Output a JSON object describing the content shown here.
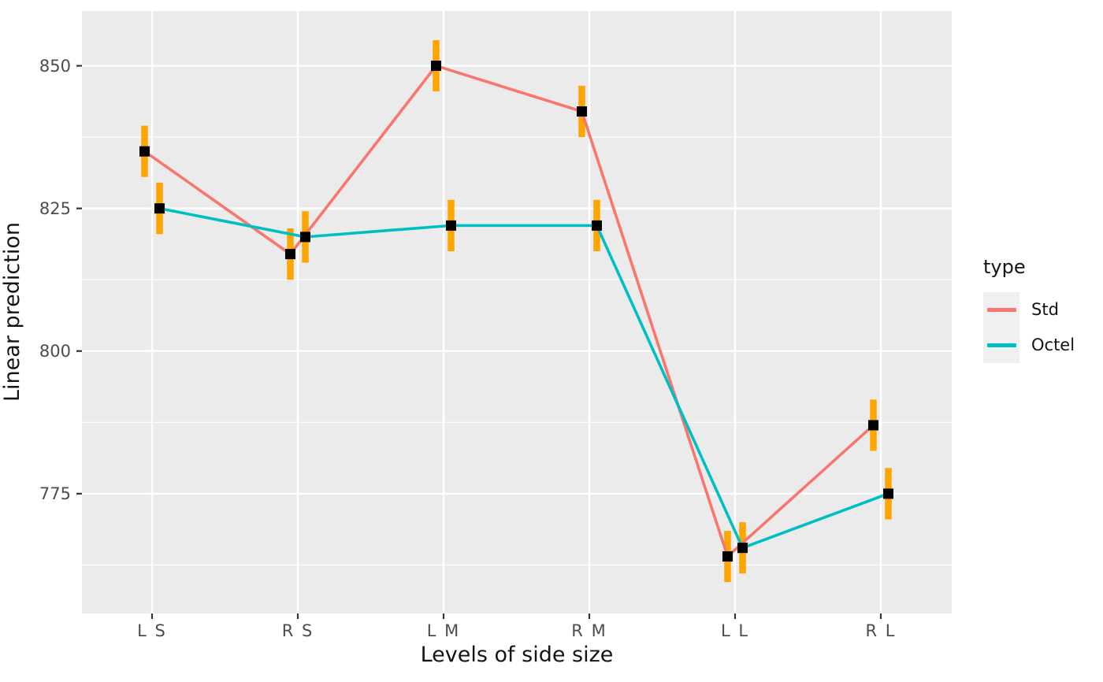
{
  "figure": {
    "y_axis": {
      "title": "Linear prediction",
      "ticks": [
        775,
        800,
        825,
        850
      ],
      "minor_ticks": [
        762.5,
        787.5,
        812.5,
        837.5
      ]
    },
    "x_axis": {
      "title": "Levels of side size",
      "categories": [
        "L S",
        "R S",
        "L M",
        "R M",
        "L L",
        "R L"
      ]
    },
    "legend": {
      "title": "type",
      "entries": [
        {
          "label": "Std",
          "color": "#F8766D"
        },
        {
          "label": "Octel",
          "color": "#00BFC4"
        }
      ]
    }
  },
  "chart_data": {
    "type": "line",
    "title": "",
    "xlabel": "Levels of side size",
    "ylabel": "Linear prediction",
    "categories": [
      "L S",
      "R S",
      "L M",
      "R M",
      "L L",
      "R L"
    ],
    "series": [
      {
        "name": "Std",
        "color": "#F8766D",
        "values": [
          835,
          817,
          850,
          842,
          764,
          787
        ],
        "ci_lower": [
          830.5,
          812.5,
          845.5,
          837.5,
          759.5,
          782.5
        ],
        "ci_upper": [
          839.5,
          821.5,
          854.5,
          846.5,
          768.5,
          791.5
        ]
      },
      {
        "name": "Octel",
        "color": "#00BFC4",
        "values": [
          825,
          820,
          822,
          822,
          765.5,
          775
        ],
        "ci_lower": [
          820.5,
          815.5,
          817.5,
          817.5,
          761.0,
          770.5
        ],
        "ci_upper": [
          829.5,
          824.5,
          826.5,
          826.5,
          770.0,
          779.5
        ]
      }
    ],
    "error_bar_color": "#FFA500",
    "point_color": "#000000",
    "point_shape": "square",
    "yticks": [
      775,
      800,
      825,
      850
    ],
    "ylim": [
      754,
      859.6
    ],
    "grid": true,
    "legend_title": "type",
    "legend_position": "right",
    "panel_background": "#EBEBEB",
    "grid_color": "#FFFFFF",
    "tick_label_color": "#4D4D4D",
    "axis_title_color": "#141414",
    "tick_mark_color": "#333333"
  }
}
